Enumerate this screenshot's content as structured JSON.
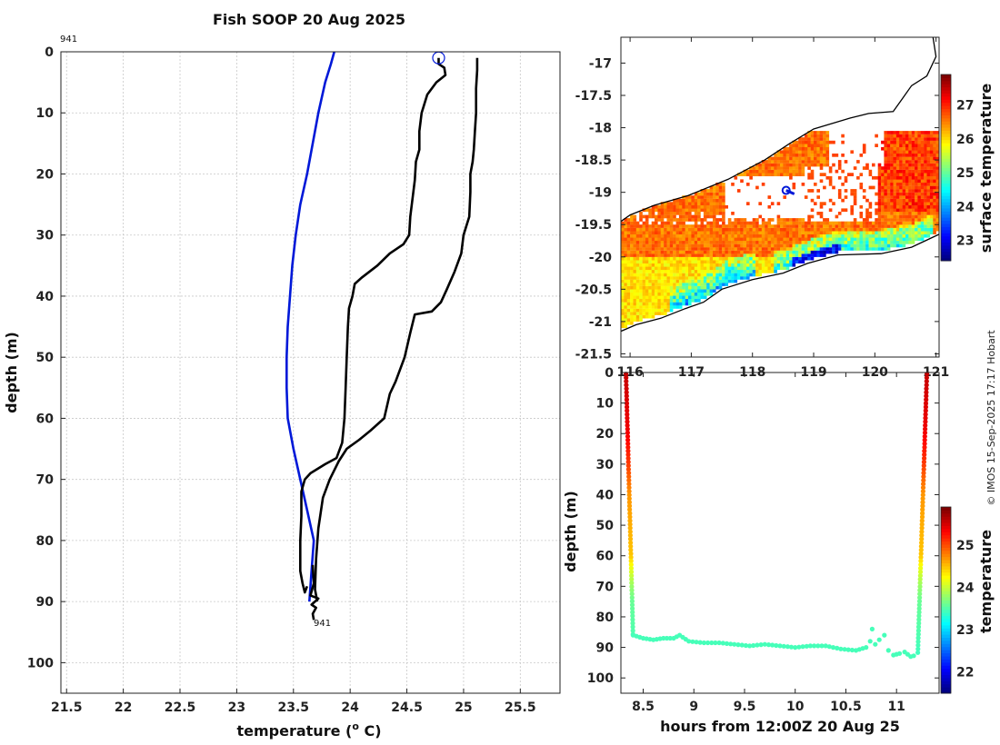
{
  "title": "Fish SOOP 20 Aug 2025",
  "credit": "© IMOS 15-Sep-2025 17:17 Hobart",
  "colors": {
    "profile_line": "#000000",
    "climatology_line": "#0018d8",
    "coast": "#000000",
    "marker": "#0018d8"
  },
  "chart_data": [
    {
      "type": "line",
      "name": "temperature-profile",
      "xlabel": "temperature (o C)",
      "xlabel_main": "temperature (",
      "xlabel_sup": "o",
      "xlabel_tail": " C)",
      "ylabel": "depth (m)",
      "xlim": [
        21.45,
        25.85
      ],
      "ylim": [
        0,
        105
      ],
      "y_inverted": true,
      "xticks": [
        "21.5",
        "22",
        "22.5",
        "23",
        "23.5",
        "24",
        "24.5",
        "25",
        "25.5"
      ],
      "yticks": [
        "0",
        "10",
        "20",
        "30",
        "40",
        "50",
        "60",
        "70",
        "80",
        "90",
        "100"
      ],
      "profile_id_top": "941",
      "profile_id_bottom": "941",
      "start_marker": {
        "x": 24.78,
        "y": 1
      },
      "series": [
        {
          "name": "climatology",
          "color": "#0018d8",
          "points": [
            [
              23.86,
              0
            ],
            [
              23.83,
              2
            ],
            [
              23.78,
              5
            ],
            [
              23.72,
              10
            ],
            [
              23.67,
              15
            ],
            [
              23.62,
              20
            ],
            [
              23.56,
              25
            ],
            [
              23.52,
              30
            ],
            [
              23.49,
              35
            ],
            [
              23.47,
              40
            ],
            [
              23.45,
              45
            ],
            [
              23.44,
              50
            ],
            [
              23.44,
              55
            ],
            [
              23.45,
              60
            ],
            [
              23.5,
              65
            ],
            [
              23.56,
              70
            ],
            [
              23.62,
              75
            ],
            [
              23.68,
              80
            ],
            [
              23.66,
              85
            ],
            [
              23.64,
              90
            ]
          ]
        },
        {
          "name": "profile-min",
          "color": "#000000",
          "points": [
            [
              24.78,
              1
            ],
            [
              24.78,
              2
            ],
            [
              24.83,
              2.6
            ],
            [
              24.84,
              3.8
            ],
            [
              24.76,
              5
            ],
            [
              24.68,
              7
            ],
            [
              24.63,
              10
            ],
            [
              24.61,
              13
            ],
            [
              24.61,
              16
            ],
            [
              24.58,
              18
            ],
            [
              24.57,
              21
            ],
            [
              24.55,
              24
            ],
            [
              24.53,
              27
            ],
            [
              24.52,
              30
            ],
            [
              24.47,
              31.5
            ],
            [
              24.35,
              33
            ],
            [
              24.24,
              35
            ],
            [
              24.1,
              37
            ],
            [
              24.04,
              38
            ],
            [
              24.02,
              40
            ],
            [
              23.99,
              42
            ],
            [
              23.98,
              45
            ],
            [
              23.97,
              50
            ],
            [
              23.96,
              55
            ],
            [
              23.95,
              60
            ],
            [
              23.93,
              64
            ],
            [
              23.88,
              66.5
            ],
            [
              23.78,
              67.5
            ],
            [
              23.65,
              69
            ],
            [
              23.6,
              70
            ],
            [
              23.57,
              72
            ],
            [
              23.57,
              76
            ],
            [
              23.56,
              80
            ],
            [
              23.56,
              85
            ],
            [
              23.58,
              87
            ],
            [
              23.6,
              88.5
            ],
            [
              23.62,
              87.5
            ]
          ]
        },
        {
          "name": "profile-max",
          "color": "#000000",
          "points": [
            [
              25.12,
              1
            ],
            [
              25.12,
              3
            ],
            [
              25.11,
              6
            ],
            [
              25.11,
              10
            ],
            [
              25.1,
              13
            ],
            [
              25.09,
              16
            ],
            [
              25.08,
              18
            ],
            [
              25.06,
              20
            ],
            [
              25.06,
              23
            ],
            [
              25.05,
              27
            ],
            [
              25.0,
              30
            ],
            [
              24.98,
              33
            ],
            [
              24.92,
              36
            ],
            [
              24.85,
              39
            ],
            [
              24.8,
              41
            ],
            [
              24.72,
              42.5
            ],
            [
              24.57,
              43
            ],
            [
              24.53,
              46
            ],
            [
              24.48,
              50
            ],
            [
              24.4,
              54
            ],
            [
              24.35,
              56
            ],
            [
              24.3,
              60
            ],
            [
              24.18,
              62
            ],
            [
              24.08,
              63.5
            ],
            [
              23.97,
              65
            ],
            [
              23.9,
              67
            ],
            [
              23.82,
              70
            ],
            [
              23.76,
              73
            ],
            [
              23.72,
              78
            ],
            [
              23.7,
              83
            ],
            [
              23.69,
              88
            ],
            [
              23.71,
              90
            ]
          ]
        },
        {
          "name": "profile-tail",
          "color": "#000000",
          "points": [
            [
              23.67,
              84
            ],
            [
              23.68,
              87
            ],
            [
              23.65,
              89
            ],
            [
              23.72,
              89.5
            ],
            [
              23.66,
              90.5
            ],
            [
              23.7,
              91
            ],
            [
              23.67,
              92
            ],
            [
              23.68,
              93
            ]
          ]
        }
      ]
    },
    {
      "type": "heatmap",
      "name": "surface-temperature-map",
      "xlim": [
        115.85,
        121.05
      ],
      "ylim": [
        -21.55,
        -16.6
      ],
      "xticks": [
        "116",
        "117",
        "118",
        "119",
        "120",
        "121"
      ],
      "yticks": [
        "-17",
        "-17.5",
        "-18",
        "-18.5",
        "-19",
        "-19.5",
        "-20",
        "-20.5",
        "-21",
        "-21.5"
      ],
      "colorbar": {
        "label": "surface temperature",
        "range": [
          22.4,
          27.9
        ],
        "ticks": [
          "23",
          "24",
          "25",
          "26",
          "27"
        ]
      },
      "track_position": {
        "lon": 118.55,
        "lat": -18.97
      },
      "coastline": [
        [
          120.95,
          -16.6
        ],
        [
          121.0,
          -16.9
        ],
        [
          120.85,
          -17.2
        ],
        [
          120.6,
          -17.35
        ],
        [
          120.45,
          -17.55
        ],
        [
          120.3,
          -17.75
        ],
        [
          119.9,
          -17.78
        ],
        [
          119.6,
          -17.85
        ],
        [
          119.0,
          -18.02
        ],
        [
          118.6,
          -18.25
        ],
        [
          118.2,
          -18.5
        ],
        [
          117.6,
          -18.8
        ],
        [
          116.95,
          -19.05
        ],
        [
          116.4,
          -19.2
        ],
        [
          116.0,
          -19.35
        ],
        [
          115.85,
          -19.45
        ]
      ],
      "coastline_south": [
        [
          121.05,
          -19.65
        ],
        [
          120.6,
          -19.85
        ],
        [
          120.1,
          -19.95
        ],
        [
          119.4,
          -19.97
        ],
        [
          118.9,
          -20.1
        ],
        [
          118.5,
          -20.25
        ],
        [
          118.0,
          -20.35
        ],
        [
          117.5,
          -20.5
        ],
        [
          117.2,
          -20.7
        ],
        [
          116.9,
          -20.8
        ],
        [
          116.5,
          -20.95
        ],
        [
          116.1,
          -21.05
        ],
        [
          115.85,
          -21.15
        ]
      ]
    },
    {
      "type": "scatter",
      "name": "temperature-time-section",
      "xlabel": "hours from 12:00Z 20 Aug 25",
      "ylabel": "depth (m)",
      "xlim": [
        8.28,
        11.42
      ],
      "ylim": [
        0,
        105
      ],
      "y_inverted": true,
      "xticks": [
        "8.5",
        "9",
        "9.5",
        "10",
        "10.5",
        "11"
      ],
      "yticks": [
        "0",
        "10",
        "20",
        "30",
        "40",
        "50",
        "60",
        "70",
        "80",
        "90",
        "100"
      ],
      "colorbar": {
        "label": "temperature",
        "range": [
          21.5,
          25.9
        ],
        "ticks": [
          "22",
          "23",
          "24",
          "25"
        ]
      },
      "descent": {
        "t0": 8.33,
        "t1": 8.4,
        "depth_max": 86
      },
      "ascent": {
        "t0": 11.21,
        "t1": 11.3,
        "depth_max": 92
      },
      "bottom_track": [
        [
          8.4,
          86
        ],
        [
          8.5,
          87
        ],
        [
          8.6,
          87.5
        ],
        [
          8.7,
          87
        ],
        [
          8.8,
          87
        ],
        [
          8.86,
          86
        ],
        [
          8.95,
          88
        ],
        [
          9.1,
          88.5
        ],
        [
          9.25,
          88.5
        ],
        [
          9.4,
          89
        ],
        [
          9.55,
          89.5
        ],
        [
          9.7,
          89
        ],
        [
          9.85,
          89.5
        ],
        [
          10.0,
          90
        ],
        [
          10.15,
          89.5
        ],
        [
          10.3,
          89.5
        ],
        [
          10.45,
          90.5
        ],
        [
          10.6,
          91
        ],
        [
          10.7,
          90
        ],
        [
          10.74,
          88
        ],
        [
          10.76,
          84
        ],
        [
          10.79,
          89
        ],
        [
          10.83,
          87.5
        ],
        [
          10.88,
          86
        ],
        [
          10.92,
          91
        ],
        [
          10.97,
          92.5
        ],
        [
          11.03,
          92
        ],
        [
          11.08,
          91.5
        ],
        [
          11.14,
          93
        ],
        [
          11.2,
          92.5
        ]
      ],
      "temp_profile": [
        [
          0,
          25.6
        ],
        [
          10,
          25.5
        ],
        [
          20,
          25.4
        ],
        [
          30,
          25.1
        ],
        [
          40,
          24.7
        ],
        [
          50,
          24.6
        ],
        [
          60,
          24.5
        ],
        [
          65,
          24.1
        ],
        [
          70,
          23.8
        ],
        [
          75,
          23.6
        ],
        [
          85,
          23.5
        ],
        [
          95,
          23.4
        ]
      ]
    }
  ]
}
